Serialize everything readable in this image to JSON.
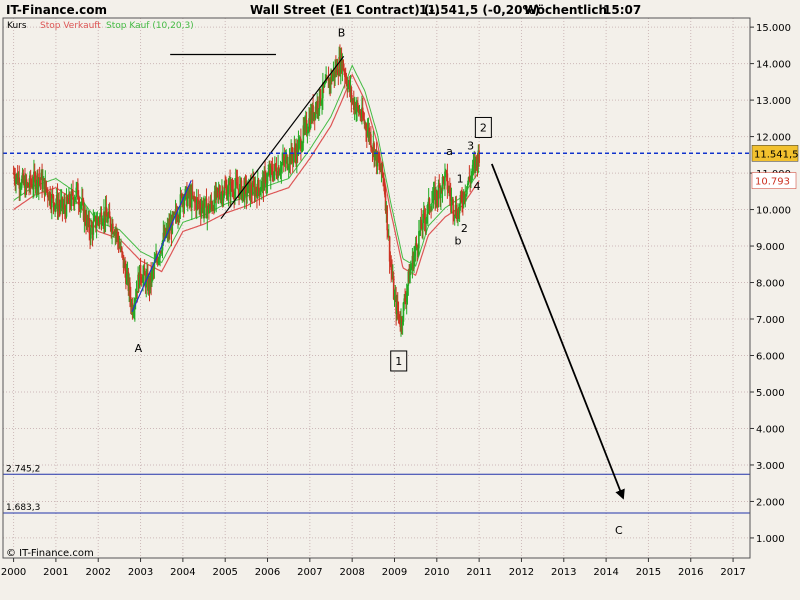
{
  "header": {
    "site": "IT-Finance.com",
    "instrument": "Wall Street (E1 Contract) (-)",
    "quote": "11.541,5 (-0,20%)",
    "interval": "Wöchentlich",
    "time": "15:07"
  },
  "legend": {
    "kurs": "Kurs",
    "stop_verkauft": "Stop Verkauft",
    "stop_kauf": "Stop Kauf (10,20,3)"
  },
  "copyright": "© IT-Finance.com",
  "price_badges": {
    "last": "11.541,5",
    "stop": "10.793"
  },
  "colors": {
    "background": "#f3f0ea",
    "grid": "#cdb9b9",
    "candle_up": "#22aa22",
    "candle_down": "#cc3322",
    "stop_verkauft": "#dd5555",
    "stop_kauf": "#44bb44",
    "last_line": "#1133cc",
    "level_line": "#2233aa",
    "badge_last": "#f2c12e",
    "badge_stop": "#ffffff"
  },
  "chart_data": {
    "type": "candlestick",
    "x_range": [
      1999.75,
      2017.4
    ],
    "y_range": [
      0.45,
      15.25
    ],
    "y_unit": "thousands",
    "x_ticks": [
      "2000",
      "2001",
      "2002",
      "2003",
      "2004",
      "2005",
      "2006",
      "2007",
      "2008",
      "2009",
      "2010",
      "2011",
      "2012",
      "2013",
      "2014",
      "2015",
      "2016",
      "2017"
    ],
    "y_ticks": [
      "1.000",
      "2.000",
      "3.000",
      "4.000",
      "5.000",
      "6.000",
      "7.000",
      "8.000",
      "9.000",
      "10.000",
      "11.000",
      "12.000",
      "13.000",
      "14.000",
      "15.000"
    ],
    "price_path": [
      [
        2000.0,
        11.0
      ],
      [
        2000.3,
        10.6
      ],
      [
        2000.6,
        10.9
      ],
      [
        2000.9,
        10.3
      ],
      [
        2001.2,
        10.0
      ],
      [
        2001.5,
        10.5
      ],
      [
        2001.8,
        9.4
      ],
      [
        2002.1,
        9.9
      ],
      [
        2002.4,
        9.5
      ],
      [
        2002.7,
        8.0
      ],
      [
        2002.8,
        7.3
      ],
      [
        2003.0,
        8.3
      ],
      [
        2003.2,
        7.9
      ],
      [
        2003.5,
        9.1
      ],
      [
        2003.8,
        9.7
      ],
      [
        2004.0,
        10.4
      ],
      [
        2004.3,
        10.2
      ],
      [
        2004.6,
        10.0
      ],
      [
        2004.9,
        10.5
      ],
      [
        2005.2,
        10.6
      ],
      [
        2005.5,
        10.5
      ],
      [
        2005.8,
        10.6
      ],
      [
        2006.1,
        11.0
      ],
      [
        2006.4,
        11.3
      ],
      [
        2006.7,
        11.6
      ],
      [
        2007.0,
        12.5
      ],
      [
        2007.3,
        13.2
      ],
      [
        2007.6,
        13.8
      ],
      [
        2007.75,
        14.1
      ],
      [
        2008.0,
        13.0
      ],
      [
        2008.2,
        12.6
      ],
      [
        2008.4,
        12.1
      ],
      [
        2008.6,
        11.3
      ],
      [
        2008.75,
        10.8
      ],
      [
        2008.9,
        8.6
      ],
      [
        2009.0,
        7.5
      ],
      [
        2009.15,
        6.9
      ],
      [
        2009.35,
        8.2
      ],
      [
        2009.6,
        9.4
      ],
      [
        2009.85,
        10.2
      ],
      [
        2010.0,
        10.4
      ],
      [
        2010.2,
        10.9
      ],
      [
        2010.35,
        10.2
      ],
      [
        2010.5,
        9.9
      ],
      [
        2010.65,
        10.5
      ],
      [
        2010.8,
        10.9
      ],
      [
        2011.0,
        11.55
      ]
    ],
    "stop_path": [
      [
        2000.0,
        10.0
      ],
      [
        2000.5,
        10.4
      ],
      [
        2001.0,
        10.6
      ],
      [
        2001.5,
        10.2
      ],
      [
        2002.0,
        9.4
      ],
      [
        2002.5,
        9.2
      ],
      [
        2003.0,
        8.6
      ],
      [
        2003.5,
        8.3
      ],
      [
        2004.0,
        9.4
      ],
      [
        2004.5,
        9.6
      ],
      [
        2005.0,
        9.9
      ],
      [
        2005.5,
        10.1
      ],
      [
        2006.0,
        10.4
      ],
      [
        2006.5,
        10.6
      ],
      [
        2007.0,
        11.4
      ],
      [
        2007.5,
        12.3
      ],
      [
        2007.8,
        13.1
      ],
      [
        2008.0,
        13.7
      ],
      [
        2008.3,
        13.0
      ],
      [
        2008.6,
        11.8
      ],
      [
        2008.9,
        10.0
      ],
      [
        2009.2,
        8.4
      ],
      [
        2009.5,
        8.2
      ],
      [
        2009.8,
        9.3
      ],
      [
        2010.2,
        9.8
      ],
      [
        2010.6,
        10.1
      ],
      [
        2011.0,
        10.793
      ]
    ],
    "last_price": 11.5415,
    "last_price_label": "11.541,5",
    "stop_value": 10.793,
    "stop_label": "10.793",
    "levels": [
      {
        "value": 2.7452,
        "label": "2.745,2"
      },
      {
        "value": 1.6833,
        "label": "1.683,3"
      }
    ],
    "trendlines": [
      {
        "x1": 2002.8,
        "y1": 7.2,
        "x2": 2004.2,
        "y2": 10.8,
        "color": "#2233cc"
      },
      {
        "x1": 2004.9,
        "y1": 9.75,
        "x2": 2007.8,
        "y2": 14.2,
        "color": "#000000"
      },
      {
        "x1": 2003.7,
        "y1": 14.25,
        "x2": 2006.2,
        "y2": 14.25,
        "color": "#000000"
      }
    ],
    "forecast_arrow": {
      "x1": 2011.3,
      "y1": 11.25,
      "x2": 2014.4,
      "y2": 2.1
    },
    "wave_labels": [
      {
        "text": "A",
        "x": 2002.95,
        "y": 6.2,
        "boxed": false
      },
      {
        "text": "B",
        "x": 2007.75,
        "y": 14.85,
        "boxed": false
      },
      {
        "text": "1",
        "x": 2009.1,
        "y": 5.85,
        "boxed": true
      },
      {
        "text": "2",
        "x": 2011.1,
        "y": 12.25,
        "boxed": true
      },
      {
        "text": "a",
        "x": 2010.3,
        "y": 11.6,
        "boxed": false
      },
      {
        "text": "b",
        "x": 2010.5,
        "y": 9.15,
        "boxed": false
      },
      {
        "text": "1",
        "x": 2010.55,
        "y": 10.85,
        "boxed": false
      },
      {
        "text": "2",
        "x": 2010.65,
        "y": 9.5,
        "boxed": false
      },
      {
        "text": "3",
        "x": 2010.8,
        "y": 11.75,
        "boxed": false
      },
      {
        "text": "4",
        "x": 2010.95,
        "y": 10.65,
        "boxed": false
      },
      {
        "text": "C",
        "x": 2014.3,
        "y": 1.22,
        "boxed": false
      }
    ]
  }
}
